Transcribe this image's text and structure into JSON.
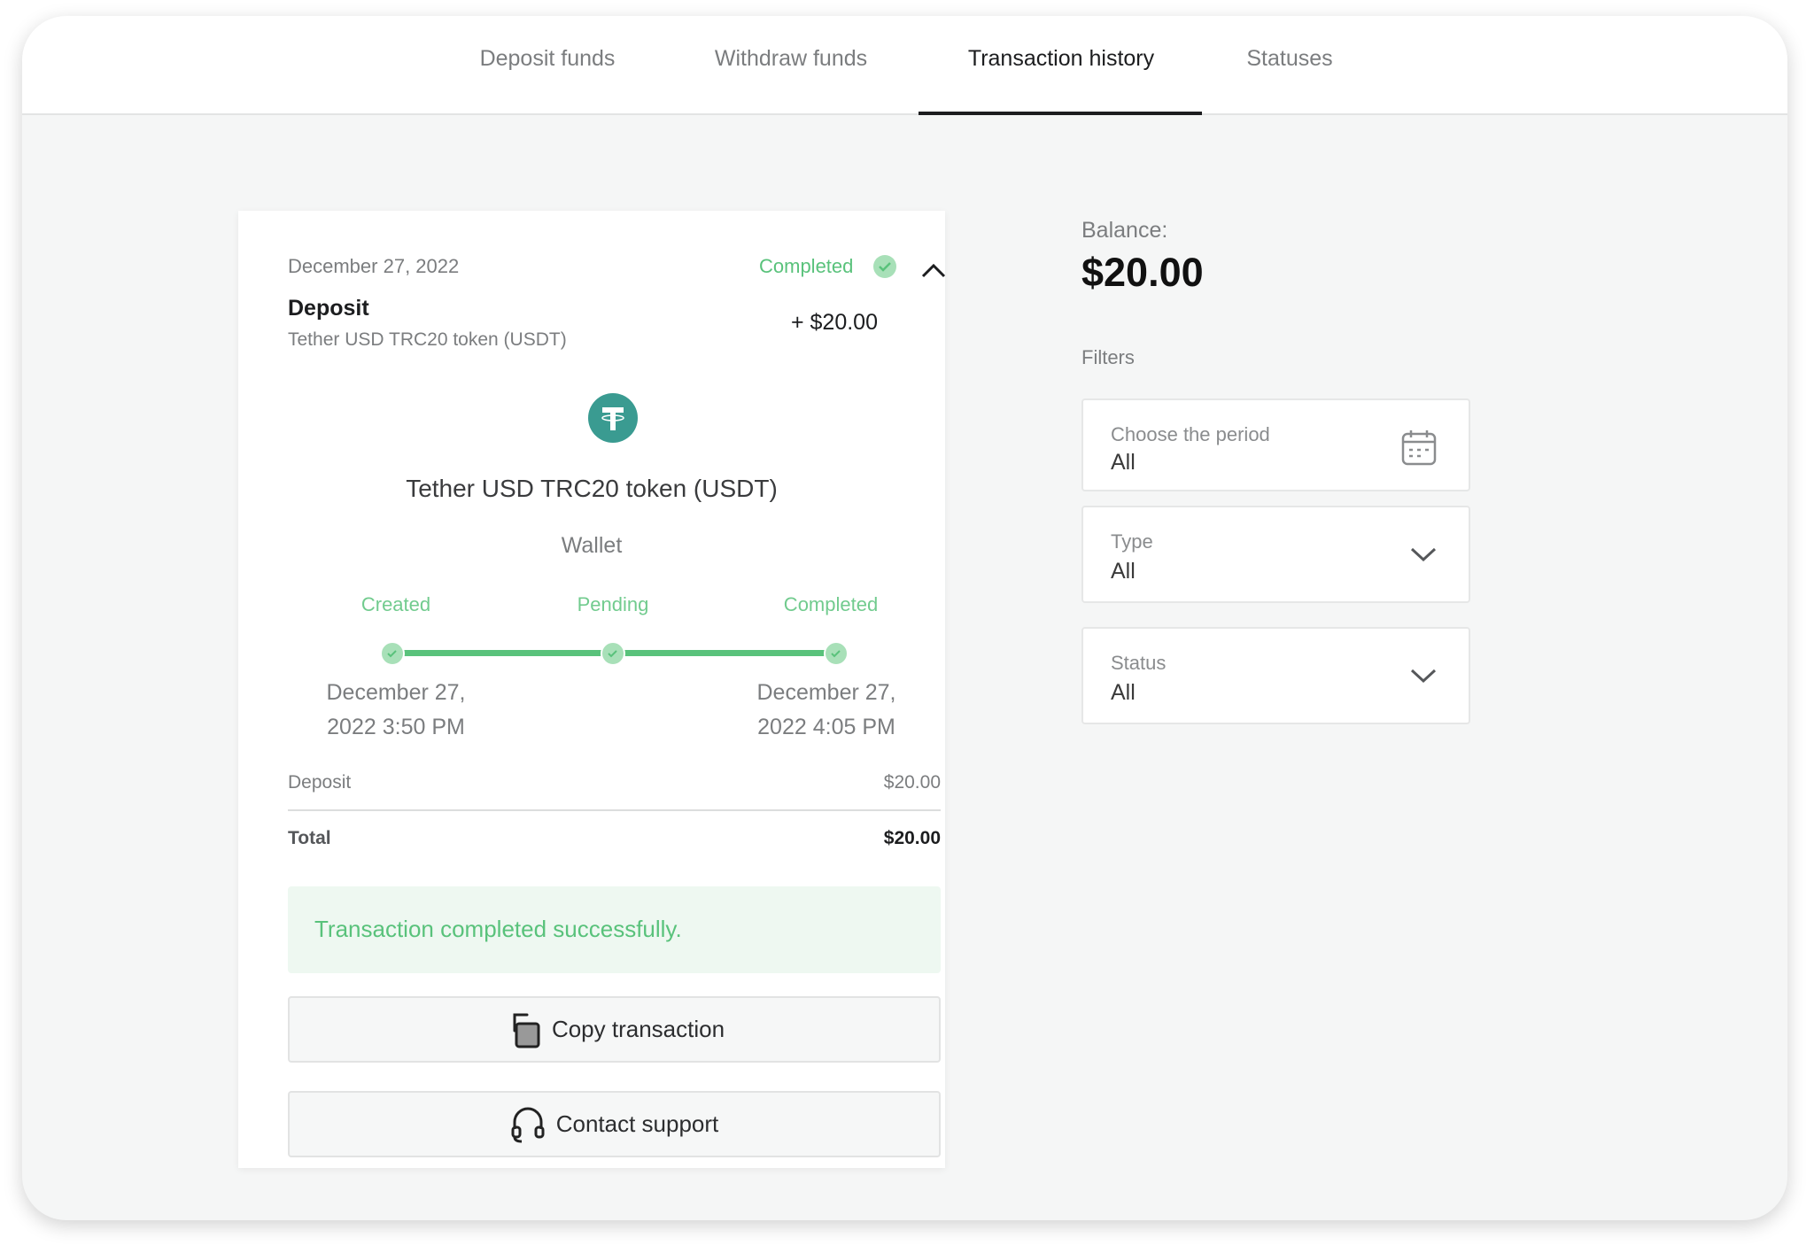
{
  "tabs": [
    {
      "label": "Deposit funds"
    },
    {
      "label": "Withdraw funds"
    },
    {
      "label": "Transaction history",
      "active": true
    },
    {
      "label": "Statuses"
    }
  ],
  "transaction": {
    "date": "December 27, 2022",
    "status": "Completed",
    "type": "Deposit",
    "method": "Tether USD TRC20 token (USDT)",
    "amount": "+ $20.00",
    "currency_icon": "tether-icon",
    "title": "Tether USD TRC20 token (USDT)",
    "subtitle": "Wallet",
    "steps": [
      {
        "label": "Created",
        "date_line1": "December 27,",
        "date_line2": "2022 3:50 PM"
      },
      {
        "label": "Pending"
      },
      {
        "label": "Completed",
        "date_line1": "December 27,",
        "date_line2": "2022 4:05 PM"
      }
    ],
    "summary": {
      "deposit_label": "Deposit",
      "deposit_value": "$20.00",
      "total_label": "Total",
      "total_value": "$20.00"
    },
    "message": "Transaction completed successfully.",
    "copy_button": "Copy transaction",
    "support_button": "Contact support"
  },
  "sidebar": {
    "balance_label": "Balance:",
    "balance_value": "$20.00",
    "filters_label": "Filters",
    "filters": [
      {
        "label": "Choose the period",
        "value": "All",
        "icon": "calendar-icon"
      },
      {
        "label": "Type",
        "value": "All",
        "icon": "chevron-down-icon"
      },
      {
        "label": "Status",
        "value": "All",
        "icon": "chevron-down-icon"
      }
    ]
  },
  "colors": {
    "accent_green": "#59c27b",
    "tether": "#3a9b91",
    "text": "#1c1d1f"
  }
}
